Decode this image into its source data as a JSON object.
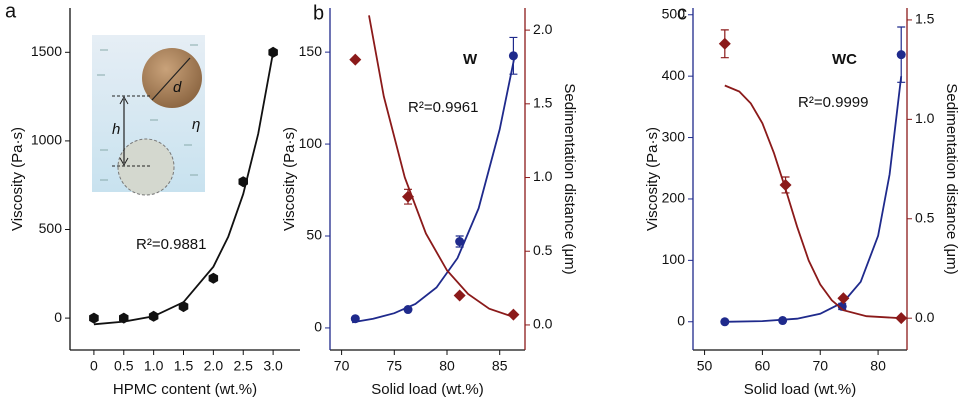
{
  "chart_data": [
    {
      "type": "scatter",
      "panel_label": "a",
      "xlabel": "HPMC content (wt.%)",
      "ylabel": "Viscosity (Pa·s)",
      "xlim": [
        -0.4,
        3.45
      ],
      "ylim": [
        -180,
        1750
      ],
      "xticks": [
        0,
        0.5,
        {
          "value": 1,
          "label": "1.0"
        },
        1.5,
        {
          "value": 2,
          "label": "2.0"
        },
        2.5,
        {
          "value": 3,
          "label": "3.0"
        }
      ],
      "yticks": [
        0,
        500,
        1000,
        1500
      ],
      "annotations": [
        "R²=0.9881"
      ],
      "inset_labels": [
        "d",
        "h",
        "η"
      ],
      "series": [
        {
          "axis": "y",
          "color": "#111111",
          "marker": "hexagon",
          "x": [
            0,
            0.5,
            1,
            1.5,
            2,
            2.5,
            3
          ],
          "values": [
            0,
            0,
            10,
            65,
            225,
            770,
            1500
          ],
          "errors": [
            null,
            null,
            null,
            null,
            null,
            null,
            null
          ],
          "fit": {
            "x": [
              0,
              0.5,
              1,
              1.5,
              2,
              2.25,
              2.5,
              2.75,
              3
            ],
            "values": [
              -35,
              -20,
              10,
              90,
              290,
              460,
              700,
              1040,
              1500
            ]
          }
        }
      ]
    },
    {
      "type": "scatter",
      "panel_label": "b",
      "xlabel": "Solid load (wt.%)",
      "ylabel": "Viscosity (Pa·s)",
      "y2label": "Sedimentation distance (μm)",
      "xlim": [
        68.9,
        87.4
      ],
      "ylim": [
        -12,
        174
      ],
      "y2lim": [
        -0.17,
        2.15
      ],
      "xticks": [
        70,
        75,
        80,
        85
      ],
      "yticks": [
        0,
        50,
        100,
        150
      ],
      "y2ticks": [
        {
          "value": 0,
          "label": "0.0"
        },
        0.5,
        {
          "value": 1,
          "label": "1.0"
        },
        1.5,
        {
          "value": 2,
          "label": "2.0"
        }
      ],
      "annotations": [
        "W",
        "R²=0.9961"
      ],
      "series": [
        {
          "axis": "y",
          "color": "#1f2a8c",
          "marker": "circle",
          "x": [
            71.3,
            76.3,
            81.2,
            86.3
          ],
          "values": [
            5,
            10,
            47,
            148
          ],
          "errors": [
            null,
            null,
            3,
            10
          ],
          "fit": {
            "x": [
              71,
              73,
              75,
              77,
              79,
              81,
              83,
              85,
              86.5
            ],
            "values": [
              3,
              5,
              8,
              13,
              22,
              38,
              65,
              108,
              150
            ]
          }
        },
        {
          "axis": "y2",
          "color": "#8b1a1a",
          "marker": "diamond",
          "x": [
            71.3,
            76.3,
            81.2,
            86.3
          ],
          "values": [
            1.8,
            0.87,
            0.2,
            0.07
          ],
          "errors": [
            null,
            0.05,
            null,
            null
          ],
          "fit": {
            "x": [
              72.6,
              74,
              76,
              78,
              80,
              82,
              84,
              86.5
            ],
            "values": [
              2.1,
              1.55,
              1.0,
              0.62,
              0.37,
              0.21,
              0.11,
              0.05
            ]
          }
        }
      ]
    },
    {
      "type": "scatter",
      "panel_label": "c",
      "xlabel": "Solid load (wt.%)",
      "ylabel": "Viscosity (Pa·s)",
      "y2label": "Sedimentation distance (μm)",
      "xlim": [
        48,
        85
      ],
      "ylim": [
        -46,
        511
      ],
      "y2lim": [
        -0.16,
        1.56
      ],
      "xticks": [
        50,
        60,
        70,
        80
      ],
      "yticks": [
        0,
        100,
        200,
        300,
        400,
        500
      ],
      "y2ticks": [
        {
          "value": 0,
          "label": "0.0"
        },
        0.5,
        {
          "value": 1,
          "label": "1.0"
        },
        1.5
      ],
      "annotations": [
        "WC",
        "R²=0.9999"
      ],
      "series": [
        {
          "axis": "y",
          "color": "#1f2a8c",
          "marker": "circle",
          "x": [
            53.5,
            63.5,
            73.8,
            84
          ],
          "values": [
            0,
            2,
            25,
            435
          ],
          "errors": [
            null,
            null,
            5,
            45
          ],
          "fit": {
            "x": [
              53.5,
              60,
              66,
              70,
              74,
              77,
              80,
              82,
              84
            ],
            "values": [
              0,
              1,
              5,
              13,
              32,
              65,
              140,
              240,
              400
            ]
          }
        },
        {
          "axis": "y2",
          "color": "#8b1a1a",
          "marker": "diamond",
          "x": [
            53.5,
            64,
            74,
            84
          ],
          "values": [
            1.38,
            0.67,
            0.1,
            0.0
          ],
          "errors": [
            0.07,
            0.04,
            null,
            null
          ],
          "fit": {
            "x": [
              53.5,
              56,
              58,
              60,
              62,
              64,
              66,
              68,
              70,
              72,
              74,
              78,
              84
            ],
            "values": [
              1.17,
              1.14,
              1.08,
              0.98,
              0.83,
              0.65,
              0.46,
              0.29,
              0.17,
              0.09,
              0.04,
              0.01,
              0.0
            ]
          }
        }
      ]
    }
  ]
}
